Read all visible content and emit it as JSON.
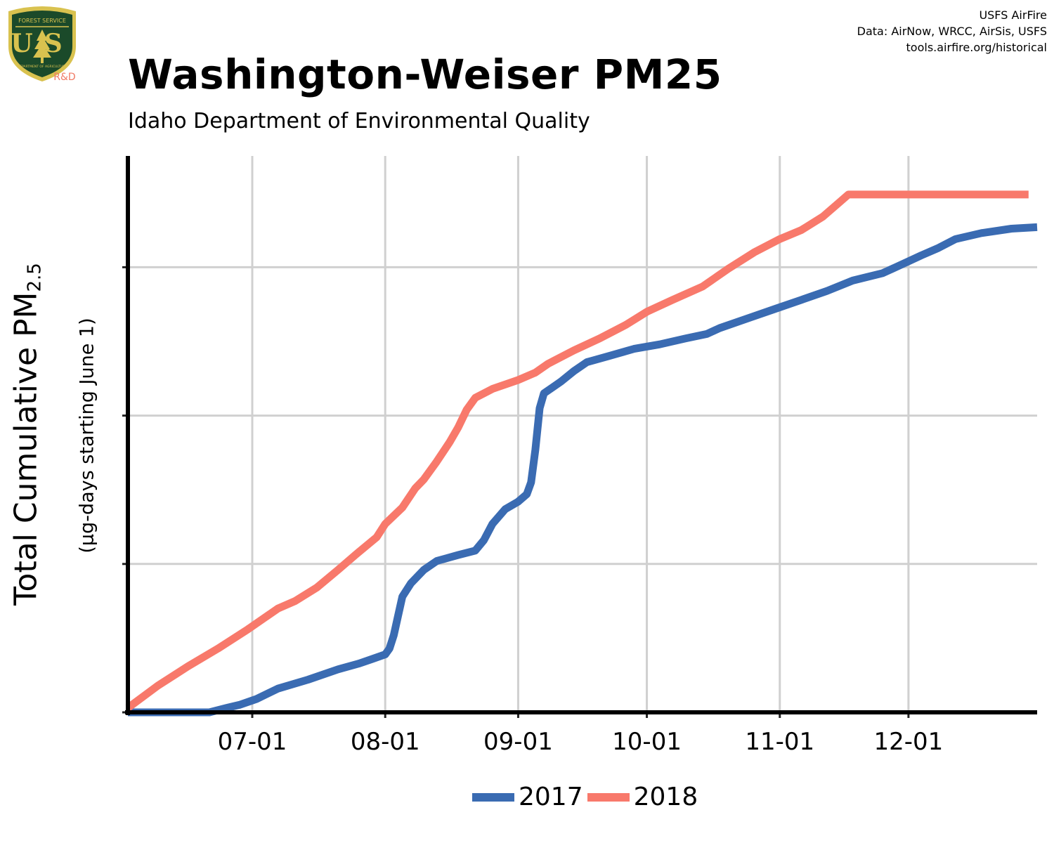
{
  "logo": {
    "text_main": "US",
    "text_top": "FOREST SERVICE",
    "text_bottom": "DEPARTMENT OF AGRICULTURE",
    "text_rd": "R&D",
    "colors": {
      "shield": "#1b4a2a",
      "gold": "#d9c24f",
      "rd": "#f07a65"
    }
  },
  "credits": [
    "USFS AirFire",
    "Data: AirNow, WRCC, AirSis, USFS",
    "tools.airfire.org/historical"
  ],
  "chart_data": {
    "type": "line",
    "title": "Washington-Weiser PM25",
    "subtitle": "Idaho Department of Environmental Quality",
    "ylabel": "Total Cumulative PM",
    "ylabel_subscript": "2.5",
    "ylabel_units": "(µg-days starting June 1)",
    "xlabel": "",
    "x_ticks": [
      "07-01",
      "08-01",
      "09-01",
      "10-01",
      "11-01",
      "12-01"
    ],
    "y_tick_labels_shown": false,
    "xlim": [
      "06-02",
      "12-31"
    ],
    "ylim": [
      0,
      3.75
    ],
    "grid": true,
    "legend_position": "bottom",
    "series": [
      {
        "name": "2017",
        "color": "#3a6bb2",
        "points": [
          [
            "06-02",
            0
          ],
          [
            "06-21",
            0
          ],
          [
            "06-25",
            0.03
          ],
          [
            "06-28",
            0.05
          ],
          [
            "07-02",
            0.09
          ],
          [
            "07-07",
            0.16
          ],
          [
            "07-14",
            0.22
          ],
          [
            "07-21",
            0.29
          ],
          [
            "07-26",
            0.33
          ],
          [
            "07-29",
            0.36
          ],
          [
            "08-01",
            0.39
          ],
          [
            "08-02",
            0.43
          ],
          [
            "08-03",
            0.52
          ],
          [
            "08-04",
            0.65
          ],
          [
            "08-05",
            0.78
          ],
          [
            "08-07",
            0.87
          ],
          [
            "08-10",
            0.96
          ],
          [
            "08-13",
            1.02
          ],
          [
            "08-18",
            1.06
          ],
          [
            "08-22",
            1.09
          ],
          [
            "08-24",
            1.16
          ],
          [
            "08-26",
            1.27
          ],
          [
            "08-29",
            1.37
          ],
          [
            "09-01",
            1.42
          ],
          [
            "09-03",
            1.47
          ],
          [
            "09-04",
            1.55
          ],
          [
            "09-05",
            1.77
          ],
          [
            "09-06",
            2.05
          ],
          [
            "09-07",
            2.15
          ],
          [
            "09-09",
            2.19
          ],
          [
            "09-11",
            2.23
          ],
          [
            "09-14",
            2.3
          ],
          [
            "09-17",
            2.36
          ],
          [
            "09-22",
            2.4
          ],
          [
            "09-28",
            2.45
          ],
          [
            "10-04",
            2.48
          ],
          [
            "10-10",
            2.52
          ],
          [
            "10-15",
            2.55
          ],
          [
            "10-18",
            2.59
          ],
          [
            "10-25",
            2.66
          ],
          [
            "10-31",
            2.72
          ],
          [
            "11-06",
            2.78
          ],
          [
            "11-12",
            2.84
          ],
          [
            "11-18",
            2.91
          ],
          [
            "11-25",
            2.96
          ],
          [
            "12-01",
            3.04
          ],
          [
            "12-04",
            3.08
          ],
          [
            "12-08",
            3.13
          ],
          [
            "12-12",
            3.19
          ],
          [
            "12-18",
            3.23
          ],
          [
            "12-25",
            3.26
          ],
          [
            "12-31",
            3.27
          ]
        ]
      },
      {
        "name": "2018",
        "color": "#f8796b",
        "points": [
          [
            "06-02",
            0.03
          ],
          [
            "06-09",
            0.18
          ],
          [
            "06-16",
            0.31
          ],
          [
            "06-23",
            0.43
          ],
          [
            "06-30",
            0.56
          ],
          [
            "07-07",
            0.7
          ],
          [
            "07-11",
            0.75
          ],
          [
            "07-16",
            0.84
          ],
          [
            "07-21",
            0.96
          ],
          [
            "07-25",
            1.06
          ],
          [
            "07-30",
            1.18
          ],
          [
            "08-01",
            1.27
          ],
          [
            "08-05",
            1.38
          ],
          [
            "08-08",
            1.51
          ],
          [
            "08-10",
            1.57
          ],
          [
            "08-13",
            1.69
          ],
          [
            "08-16",
            1.82
          ],
          [
            "08-18",
            1.92
          ],
          [
            "08-20",
            2.04
          ],
          [
            "08-22",
            2.12
          ],
          [
            "08-26",
            2.18
          ],
          [
            "09-01",
            2.24
          ],
          [
            "09-05",
            2.29
          ],
          [
            "09-08",
            2.35
          ],
          [
            "09-14",
            2.44
          ],
          [
            "09-20",
            2.52
          ],
          [
            "09-26",
            2.61
          ],
          [
            "10-01",
            2.7
          ],
          [
            "10-07",
            2.78
          ],
          [
            "10-14",
            2.87
          ],
          [
            "10-20",
            2.99
          ],
          [
            "10-26",
            3.1
          ],
          [
            "11-01",
            3.19
          ],
          [
            "11-06",
            3.25
          ],
          [
            "11-11",
            3.34
          ],
          [
            "11-15",
            3.44
          ],
          [
            "11-17",
            3.49
          ],
          [
            "11-20",
            3.49
          ],
          [
            "12-29",
            3.49
          ]
        ]
      }
    ]
  }
}
